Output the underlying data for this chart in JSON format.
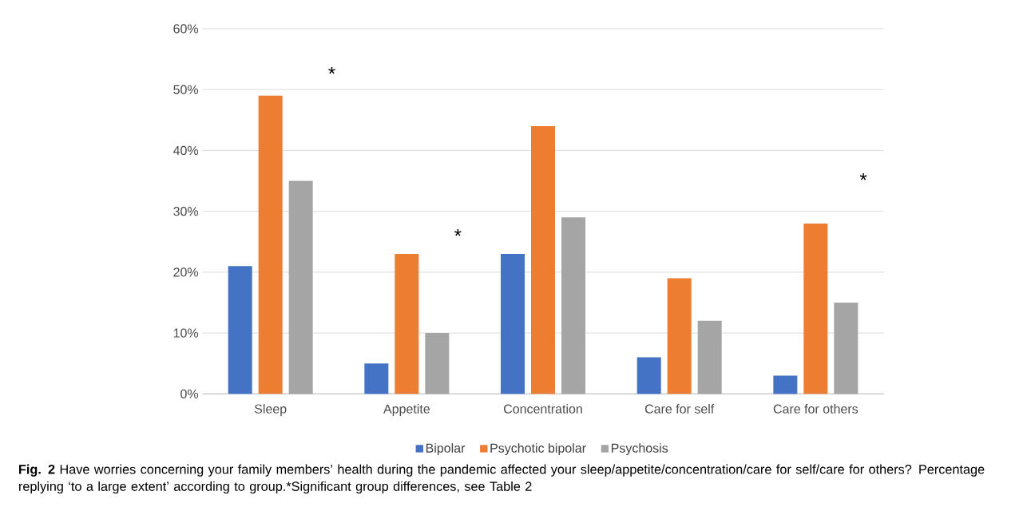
{
  "chart_data": {
    "type": "bar",
    "categories": [
      "Sleep",
      "Appetite",
      "Concentration",
      "Care for self",
      "Care for others"
    ],
    "series": [
      {
        "name": "Bipolar",
        "color": "#4472c4",
        "values": [
          21,
          5,
          23,
          6,
          3
        ]
      },
      {
        "name": "Psychotic bipolar",
        "color": "#ed7d31",
        "values": [
          49,
          23,
          44,
          19,
          28
        ]
      },
      {
        "name": "Psychosis",
        "color": "#a5a5a5",
        "values": [
          35,
          10,
          29,
          12,
          15
        ]
      }
    ],
    "ylim": [
      0,
      60
    ],
    "yticks": [
      {
        "value": 0,
        "label": "0%"
      },
      {
        "value": 10,
        "label": "10%"
      },
      {
        "value": 20,
        "label": "20%"
      },
      {
        "value": 30,
        "label": "30%"
      },
      {
        "value": 40,
        "label": "40%"
      },
      {
        "value": 50,
        "label": "50%"
      },
      {
        "value": 60,
        "label": "60%"
      }
    ],
    "grid": "y",
    "legend": "bottom",
    "annotations": [
      "*",
      "*",
      "*",
      "**Fig. 2**  Have worries concerning your family members’ health during the pandemic affected your sleep/appetite/concentration/care for self/care for others? Percentage replying ‘to a large extent’ according to group.*Significant group differences, see Table 2"
    ]
  }
}
